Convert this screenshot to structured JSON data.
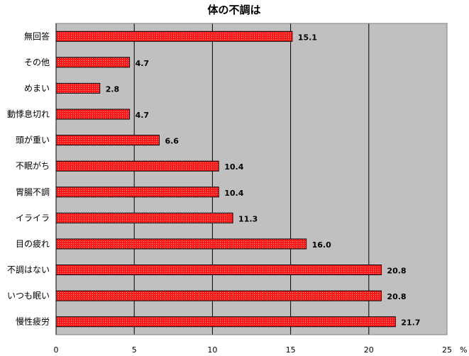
{
  "chart_data": {
    "type": "bar",
    "orientation": "horizontal",
    "title": "体の不調は",
    "unit": "%",
    "categories": [
      "無回答",
      "その他",
      "めまい",
      "動悸息切れ",
      "頭が重い",
      "不眠がち",
      "胃腸不調",
      "イライラ",
      "目の疲れ",
      "不調はない",
      "いつも眠い",
      "慢性疲労"
    ],
    "values": [
      15.1,
      4.7,
      2.8,
      4.7,
      6.6,
      10.4,
      10.4,
      11.3,
      16.0,
      20.8,
      20.8,
      21.7
    ],
    "value_labels": [
      "15.1",
      "4.7",
      "2.8",
      "4.7",
      "6.6",
      "10.4",
      "10.4",
      "11.3",
      "16.0",
      "20.8",
      "20.8",
      "21.7"
    ],
    "xlim": [
      0,
      25
    ],
    "xticks": [
      0,
      5,
      10,
      15,
      20,
      25
    ],
    "xtick_labels": [
      "0",
      "5",
      "10",
      "15",
      "20",
      "25"
    ],
    "grid": true,
    "bar_color": "#ff0000",
    "plot_background": "#c0c0c0"
  }
}
